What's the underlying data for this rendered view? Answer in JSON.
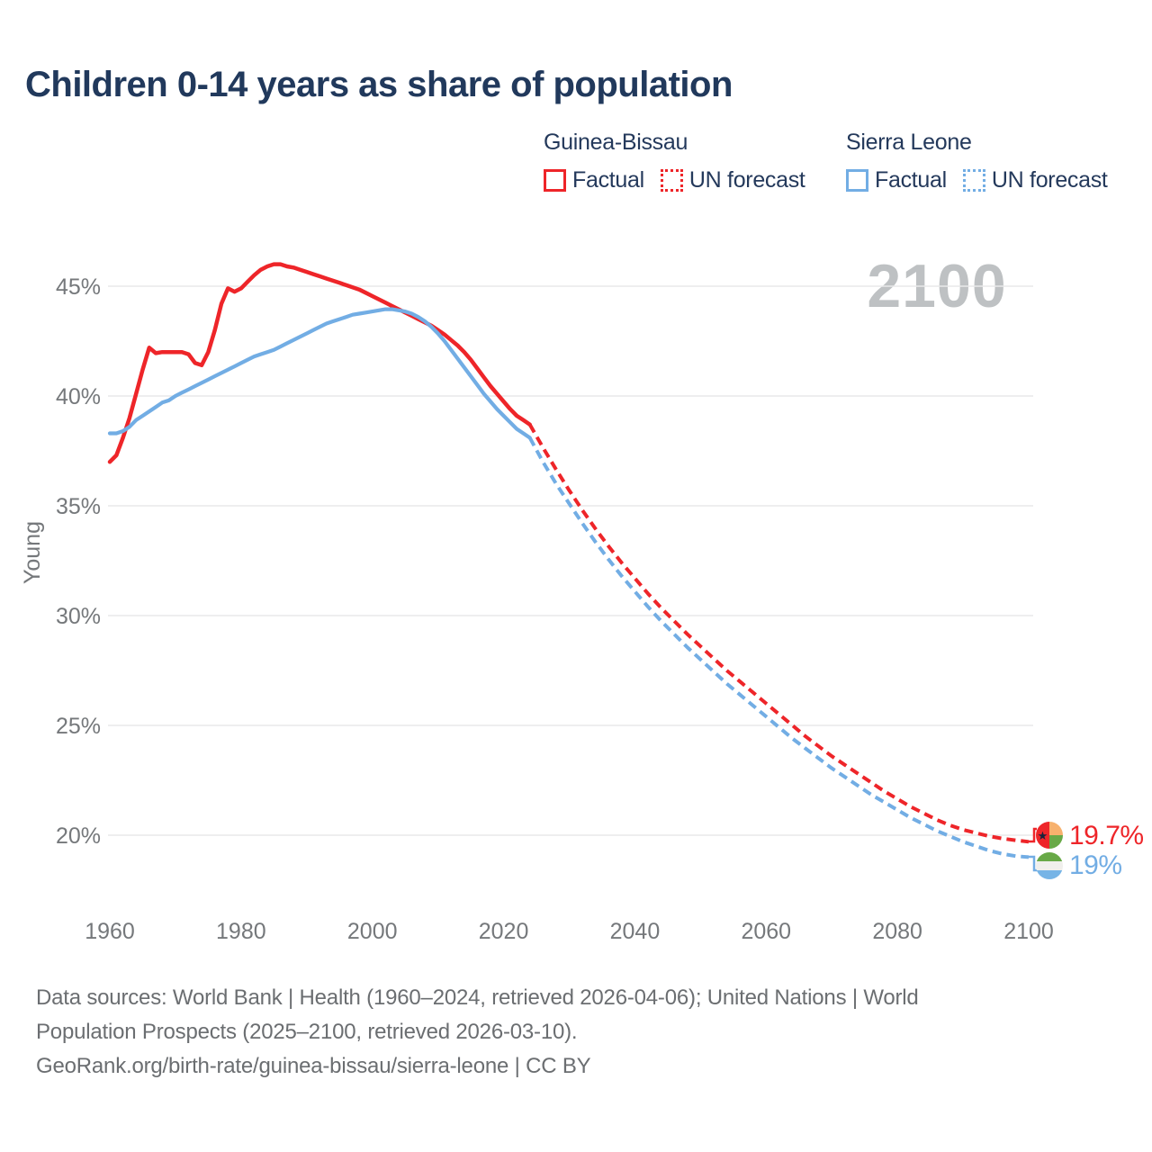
{
  "title": "Children 0-14 years as share of population",
  "watermark": "2100",
  "legend": {
    "groups": [
      {
        "name": "Guinea-Bissau",
        "color": "#ee2529",
        "items": [
          {
            "label": "Factual",
            "style": "solid"
          },
          {
            "label": "UN forecast",
            "style": "dotted"
          }
        ]
      },
      {
        "name": "Sierra Leone",
        "color": "#72ade4",
        "items": [
          {
            "label": "Factual",
            "style": "solid"
          },
          {
            "label": "UN forecast",
            "style": "dotted"
          }
        ]
      }
    ]
  },
  "chart_data": {
    "type": "line",
    "title": "Children 0-14 years as share of population",
    "xlabel": "",
    "ylabel": "Young",
    "ylim": [
      18.5,
      47
    ],
    "xlim": [
      1958,
      2106
    ],
    "grid": "horizontal",
    "legend_position": "top-right",
    "x_ticks": [
      {
        "value": 1960,
        "label": "1960"
      },
      {
        "value": 1980,
        "label": "1980"
      },
      {
        "value": 2000,
        "label": "2000"
      },
      {
        "value": 2020,
        "label": "2020"
      },
      {
        "value": 2040,
        "label": "2040"
      },
      {
        "value": 2060,
        "label": "2060"
      },
      {
        "value": 2080,
        "label": "2080"
      },
      {
        "value": 2100,
        "label": "2100"
      }
    ],
    "y_ticks": [
      {
        "value": 45,
        "label": "45%"
      },
      {
        "value": 40,
        "label": "40%"
      },
      {
        "value": 35,
        "label": "35%"
      },
      {
        "value": 30,
        "label": "30%"
      },
      {
        "value": 25,
        "label": "25%"
      },
      {
        "value": 20,
        "label": "20%"
      }
    ],
    "series": [
      {
        "name": "Guinea-Bissau Factual",
        "color": "#ee2529",
        "style": "solid",
        "width": 4.5,
        "start_year": 1960,
        "step": 1,
        "values": [
          37.0,
          37.3,
          38.1,
          39.0,
          40.1,
          41.2,
          42.2,
          41.95,
          42.0,
          42.0,
          42.0,
          42.0,
          41.9,
          41.5,
          41.4,
          42.0,
          43.0,
          44.2,
          44.9,
          44.75,
          44.9,
          45.2,
          45.5,
          45.75,
          45.9,
          46.0,
          46.0,
          45.9,
          45.85,
          45.75,
          45.65,
          45.55,
          45.45,
          45.35,
          45.25,
          45.15,
          45.05,
          44.95,
          44.85,
          44.7,
          44.55,
          44.4,
          44.25,
          44.1,
          43.95,
          43.8,
          43.65,
          43.5,
          43.35,
          43.2,
          43.0,
          42.8,
          42.55,
          42.3,
          42.0,
          41.65,
          41.25,
          40.85,
          40.45,
          40.1,
          39.75,
          39.4,
          39.1,
          38.9,
          38.7
        ]
      },
      {
        "name": "Guinea-Bissau UN forecast",
        "color": "#ee2529",
        "style": "dashed",
        "width": 4,
        "start_year": 2024,
        "step": 2,
        "values": [
          38.7,
          37.65,
          36.65,
          35.7,
          34.8,
          33.95,
          33.15,
          32.4,
          31.7,
          31.0,
          30.35,
          29.75,
          29.15,
          28.6,
          28.05,
          27.5,
          27.0,
          26.5,
          26.0,
          25.5,
          25.0,
          24.5,
          24.05,
          23.6,
          23.2,
          22.8,
          22.4,
          22.0,
          21.65,
          21.3,
          21.0,
          20.7,
          20.45,
          20.25,
          20.1,
          19.95,
          19.85,
          19.77,
          19.7
        ]
      },
      {
        "name": "Sierra Leone Factual",
        "color": "#72ade4",
        "style": "solid",
        "width": 4.2,
        "start_year": 1960,
        "step": 1,
        "values": [
          38.3,
          38.3,
          38.4,
          38.6,
          38.9,
          39.1,
          39.3,
          39.5,
          39.7,
          39.8,
          40.0,
          40.15,
          40.3,
          40.45,
          40.6,
          40.75,
          40.9,
          41.05,
          41.2,
          41.35,
          41.5,
          41.65,
          41.8,
          41.9,
          42.0,
          42.1,
          42.25,
          42.4,
          42.55,
          42.7,
          42.85,
          43.0,
          43.15,
          43.3,
          43.4,
          43.5,
          43.6,
          43.7,
          43.75,
          43.8,
          43.85,
          43.9,
          43.95,
          43.95,
          43.9,
          43.85,
          43.75,
          43.6,
          43.4,
          43.15,
          42.85,
          42.5,
          42.1,
          41.7,
          41.3,
          40.9,
          40.5,
          40.1,
          39.75,
          39.4,
          39.1,
          38.8,
          38.5,
          38.3,
          38.1
        ]
      },
      {
        "name": "Sierra Leone UN forecast",
        "color": "#72ade4",
        "style": "dashed",
        "width": 4,
        "start_year": 2024,
        "step": 2,
        "values": [
          38.1,
          37.0,
          36.0,
          35.1,
          34.2,
          33.35,
          32.55,
          31.8,
          31.1,
          30.4,
          29.75,
          29.15,
          28.55,
          28.0,
          27.45,
          26.9,
          26.4,
          25.9,
          25.4,
          24.9,
          24.4,
          23.95,
          23.5,
          23.05,
          22.65,
          22.25,
          21.85,
          21.5,
          21.15,
          20.8,
          20.5,
          20.2,
          19.95,
          19.7,
          19.5,
          19.3,
          19.15,
          19.05,
          19.0
        ]
      }
    ],
    "end_labels": [
      {
        "text": "19.7%",
        "color": "#ee2529",
        "series": "Guinea-Bissau"
      },
      {
        "text": "19%",
        "color": "#72ade4",
        "series": "Sierra Leone"
      }
    ]
  },
  "flags": {
    "guinea_bissau": {
      "red": "#ee2529",
      "yellow": "#f7b16d",
      "green": "#68a947",
      "star": "#16233c"
    },
    "sierra_leone": {
      "green": "#68a947",
      "white": "#f0efec",
      "blue": "#76b4e6"
    }
  },
  "footer": {
    "lines": [
      "Data sources: World Bank | Health (1960–2024, retrieved 2026-04-06); United Nations | World",
      "Population Prospects (2025–2100, retrieved 2026-03-10).",
      "GeoRank.org/birth-rate/guinea-bissau/sierra-leone | CC BY"
    ]
  }
}
